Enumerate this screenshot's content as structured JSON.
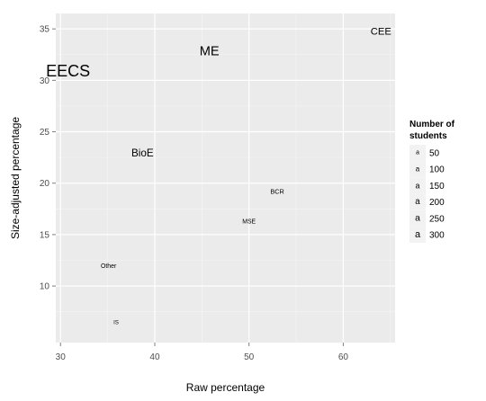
{
  "chart_data": {
    "type": "scatter",
    "title": "",
    "xlabel": "Raw percentage",
    "ylabel": "Size-adjusted percentage",
    "xlim": [
      29.5,
      65.5
    ],
    "ylim": [
      4.5,
      36.5
    ],
    "x_ticks": [
      30,
      40,
      50,
      60
    ],
    "y_ticks": [
      10,
      15,
      20,
      25,
      30,
      35
    ],
    "grid": true,
    "points": [
      {
        "label": "CEE",
        "x": 64.0,
        "y": 34.7,
        "size": 90
      },
      {
        "label": "ME",
        "x": 45.8,
        "y": 32.8,
        "size": 180
      },
      {
        "label": "EECS",
        "x": 30.8,
        "y": 30.9,
        "size": 300
      },
      {
        "label": "BioE",
        "x": 38.7,
        "y": 22.9,
        "size": 100
      },
      {
        "label": "BCR",
        "x": 53.0,
        "y": 19.2,
        "size": 25
      },
      {
        "label": "MSE",
        "x": 50.0,
        "y": 16.2,
        "size": 20
      },
      {
        "label": "Other",
        "x": 35.1,
        "y": 11.9,
        "size": 20
      },
      {
        "label": "IS",
        "x": 35.9,
        "y": 6.4,
        "size": 12
      }
    ],
    "legend": {
      "title_line1": "Number of",
      "title_line2": "students",
      "placement": "right",
      "entries": [
        {
          "label": "50",
          "value": 50
        },
        {
          "label": "100",
          "value": 100
        },
        {
          "label": "150",
          "value": 150
        },
        {
          "label": "200",
          "value": 200
        },
        {
          "label": "250",
          "value": 250
        },
        {
          "label": "300",
          "value": 300
        }
      ]
    },
    "colors": {
      "panel": "#ebebeb",
      "grid_major": "#ffffff",
      "grid_minor": "#f5f5f5",
      "text": "#000000",
      "tick_text": "#4d4d4d"
    }
  }
}
